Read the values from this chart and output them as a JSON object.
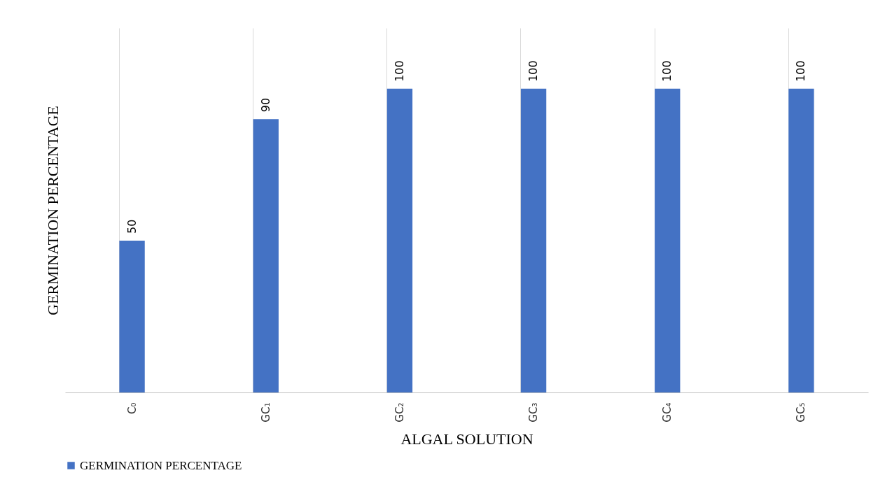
{
  "chart_data": {
    "type": "bar",
    "xlabel": "ALGAL SOLUTION",
    "ylabel": "GERMINATION PERCENTAGE",
    "categories": [
      "C₀",
      "GC₁",
      "GC₂",
      "GC₃",
      "GC₄",
      "GC₅"
    ],
    "series": [
      {
        "name": "GERMINATION PERCENTAGE",
        "color": "#4472c4",
        "values": [
          50,
          90,
          100,
          100,
          100,
          100
        ]
      }
    ],
    "ylim": [
      0,
      120
    ],
    "data_labels": true,
    "grid": "x",
    "legend": "bottom",
    "tick_labels": "x"
  }
}
